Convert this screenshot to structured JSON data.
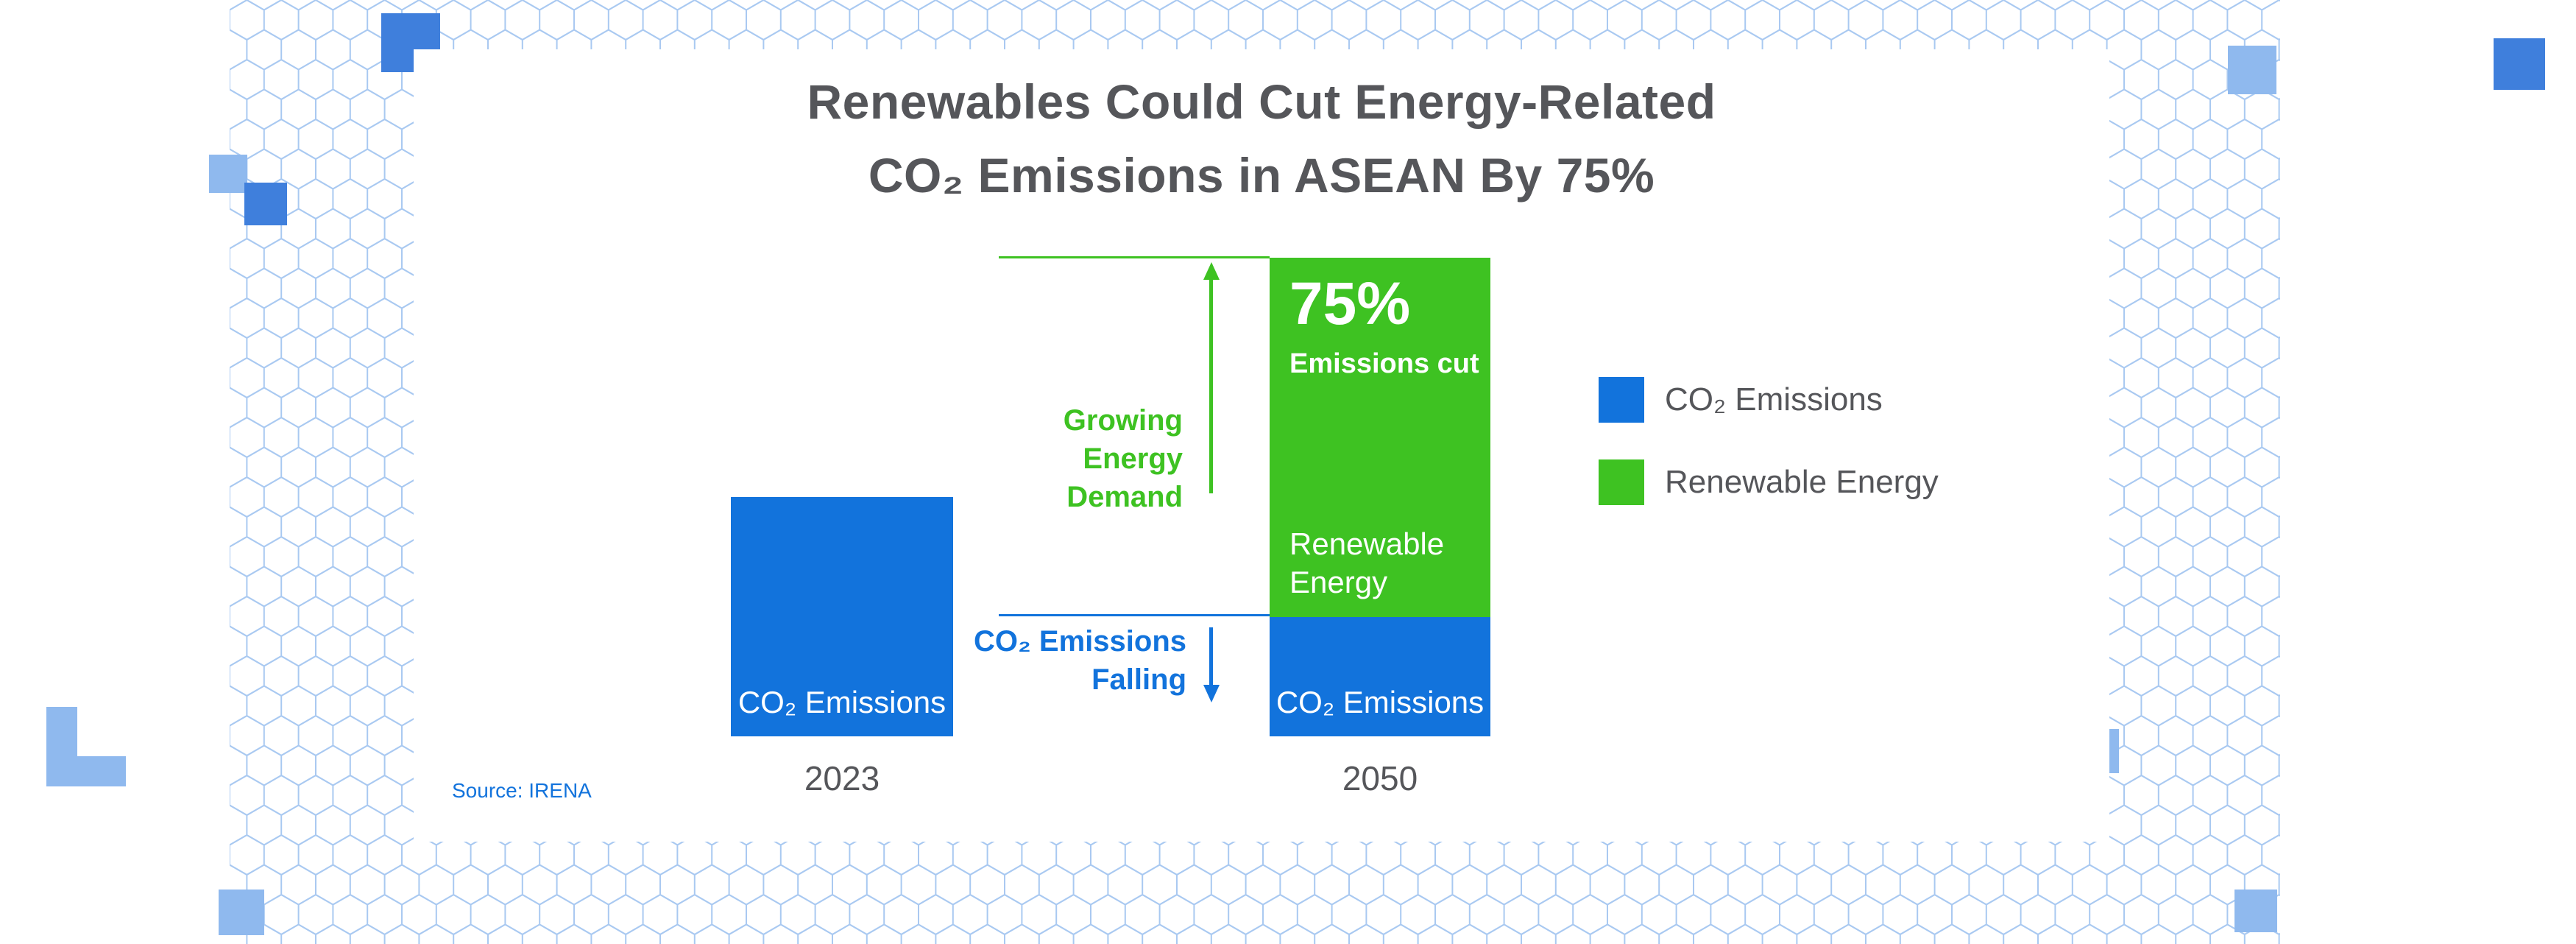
{
  "title": {
    "line1": "Renewables Could Cut Energy-Related",
    "line2": "CO₂ Emissions in ASEAN By 75%"
  },
  "chart_data": {
    "type": "bar",
    "stacked": true,
    "title": "Renewables Could Cut Energy-Related CO₂ Emissions in ASEAN By 75%",
    "categories": [
      "2023",
      "2050"
    ],
    "values_note": "relative units estimated from bar heights; full 2050 bar = 100",
    "series": [
      {
        "name": "CO₂ Emissions",
        "color": "#1273DC",
        "values": [
          50,
          25
        ]
      },
      {
        "name": "Renewable Energy",
        "color": "#3EC222",
        "values": [
          0,
          75
        ]
      }
    ],
    "annotations": [
      {
        "text": "75% Emissions cut",
        "position": "top of 2050 renewable segment",
        "color": "#FFFFFF"
      },
      {
        "text": "Growing Energy Demand",
        "arrow": "up",
        "color": "#3EC222"
      },
      {
        "text": "CO₂ Emissions Falling",
        "arrow": "down",
        "color": "#1273DC"
      }
    ],
    "legend_position": "right",
    "grid": false,
    "xlabel": "",
    "ylabel": "",
    "source": "IRENA"
  },
  "bars": {
    "y2023": {
      "label": "CO₂ Emissions",
      "year": "2023"
    },
    "y2050": {
      "year": "2050",
      "cut_value": "75%",
      "cut_label": "Emissions cut",
      "green_label": "Renewable\nEnergy",
      "blue_label": "CO₂ Emissions"
    }
  },
  "callouts": {
    "growing": "Growing\nEnergy\nDemand",
    "falling": "CO₂ Emissions\nFalling"
  },
  "legend": {
    "items": [
      {
        "label": "CO₂ Emissions",
        "color": "#1273DC"
      },
      {
        "label": "Renewable Energy",
        "color": "#3EC222"
      }
    ]
  },
  "source": "Source: IRENA",
  "colors": {
    "blue": "#1273DC",
    "green": "#3EC222",
    "text_gray": "#55565A",
    "hex_outline": "#A9C9F1",
    "decor_light": "#8FB9EE",
    "decor_medium": "#3F7FDC"
  }
}
